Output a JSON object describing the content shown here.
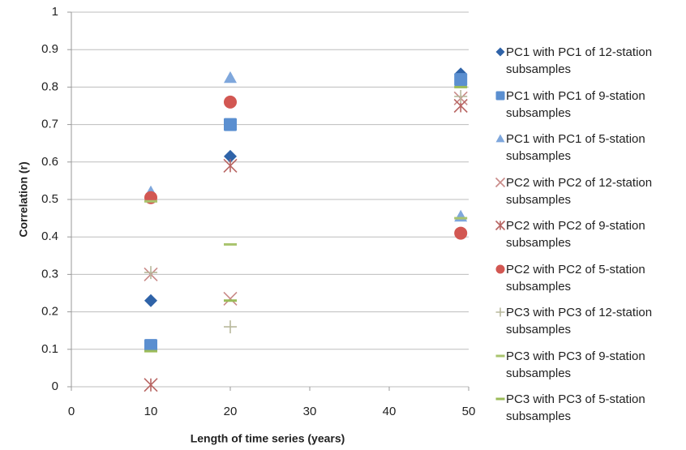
{
  "chart_data": {
    "type": "scatter",
    "xlabel": "Length of time series (years)",
    "ylabel": "Correlation (r)",
    "x": [
      10,
      20,
      49
    ],
    "xlim": [
      0,
      50
    ],
    "xticks": [
      0,
      10,
      20,
      30,
      40,
      50
    ],
    "ylim": [
      0,
      1
    ],
    "yticks": [
      0,
      0.1,
      0.2,
      0.3,
      0.4,
      0.5,
      0.6,
      0.7,
      0.8,
      0.9,
      1
    ],
    "grid": true,
    "legend": "right",
    "series": [
      {
        "name": "PC1 with PC1 of 12-station subsamples",
        "marker": "diamond",
        "color": "#2f63a8",
        "values": [
          0.23,
          0.615,
          0.835
        ]
      },
      {
        "name": "PC1 with PC1 of 9-station subsamples",
        "marker": "square",
        "color": "#5b8fd0",
        "values": [
          0.11,
          0.7,
          0.82
        ]
      },
      {
        "name": "PC1 with PC1 of 5-station subsamples",
        "marker": "triangle",
        "color": "#7fa7dc",
        "values": [
          0.52,
          0.825,
          0.455
        ]
      },
      {
        "name": "PC2 with PC2 of 12-station subsamples",
        "marker": "x",
        "color": "#c98a88",
        "values": [
          0.3,
          0.235,
          0.77
        ]
      },
      {
        "name": "PC2 with PC2 of 9-station subsamples",
        "marker": "star",
        "color": "#b86563",
        "values": [
          0.005,
          0.59,
          0.75
        ]
      },
      {
        "name": "PC2 with PC2 of 5-station subsamples",
        "marker": "circle",
        "color": "#d25752",
        "values": [
          0.505,
          0.76,
          0.41
        ]
      },
      {
        "name": "PC3 with PC3 of 12-station subsamples",
        "marker": "plus",
        "color": "#b8b89c",
        "values": [
          0.305,
          0.16,
          0.775
        ]
      },
      {
        "name": "PC3 with PC3 of 9-station subsamples",
        "marker": "dash",
        "color": "#a9c46e",
        "values": [
          0.495,
          0.38,
          0.45
        ]
      },
      {
        "name": "PC3 with PC3 of 5-station subsamples",
        "marker": "dash",
        "color": "#9bbb59",
        "values": [
          0.095,
          0.23,
          0.8
        ]
      }
    ]
  }
}
